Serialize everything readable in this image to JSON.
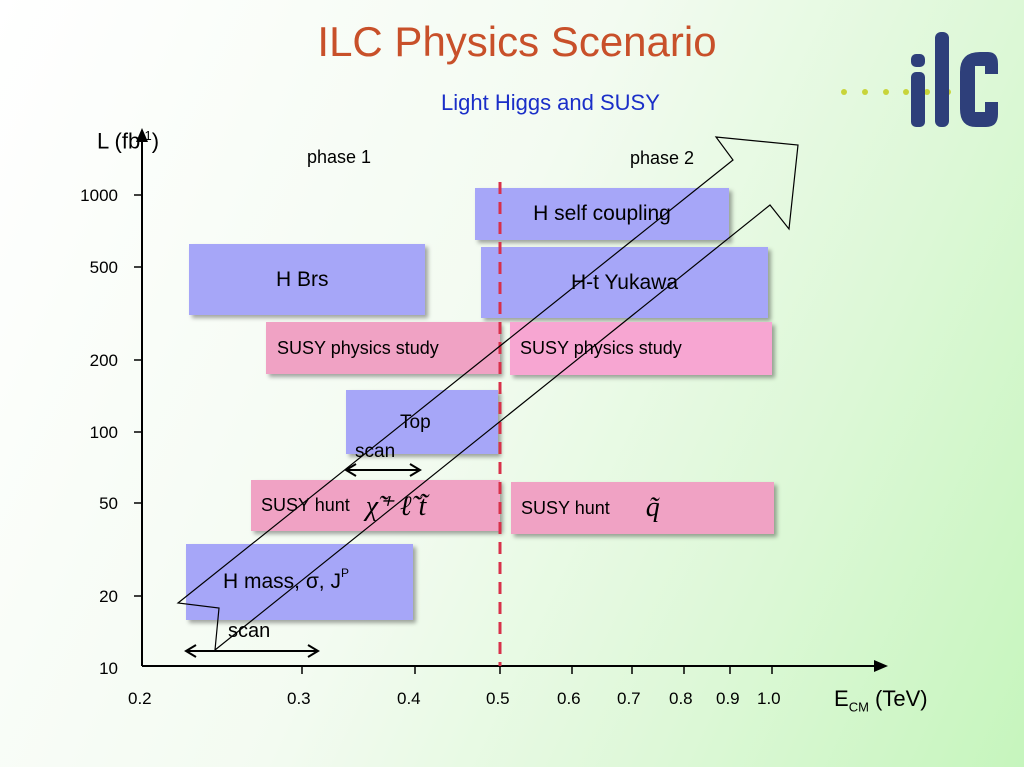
{
  "title": "ILC Physics Scenario",
  "subtitle": "Light Higgs and SUSY",
  "logo": {
    "text": "ilc",
    "dot_color": "#c8d43a",
    "letter_color": "#2e3f7a"
  },
  "axes": {
    "ylabel": "L (fb",
    "ylabel_sup": "-1",
    "ylabel_close": ")",
    "xlabel": "E",
    "xlabel_sub": "CM",
    "xlabel_unit": " (TeV)",
    "yticks": [
      "1000",
      "500",
      "200",
      "100",
      "50",
      "20",
      "10"
    ],
    "xticks": [
      "0.2",
      "0.3",
      "0.4",
      "0.5",
      "0.6",
      "0.7",
      "0.8",
      "0.9",
      "1.0"
    ]
  },
  "phases": [
    "phase 1",
    "phase 2"
  ],
  "boxes": {
    "h_self": "H self coupling",
    "h_brs": "H Brs",
    "htt": "H-t Yukawa",
    "susy_study1": "SUSY physics study",
    "susy_study2": "SUSY physics study",
    "top": "Top",
    "top_scan": "scan",
    "susy_hunt1": "SUSY hunt",
    "susy_hunt1_particles": "χ̃⁺ ℓ̃ t̃",
    "susy_hunt2": "SUSY hunt",
    "susy_hunt2_particles": "q̃",
    "h_mass": "H mass, σ, J",
    "h_mass_sup": "P",
    "h_scan": "scan"
  },
  "colors": {
    "title": "#c8502a",
    "subtitle": "#1a2ec8",
    "blue_box": "#a6a6f8",
    "pink_box": "#f0a2c4",
    "divider": "#d8304a"
  }
}
